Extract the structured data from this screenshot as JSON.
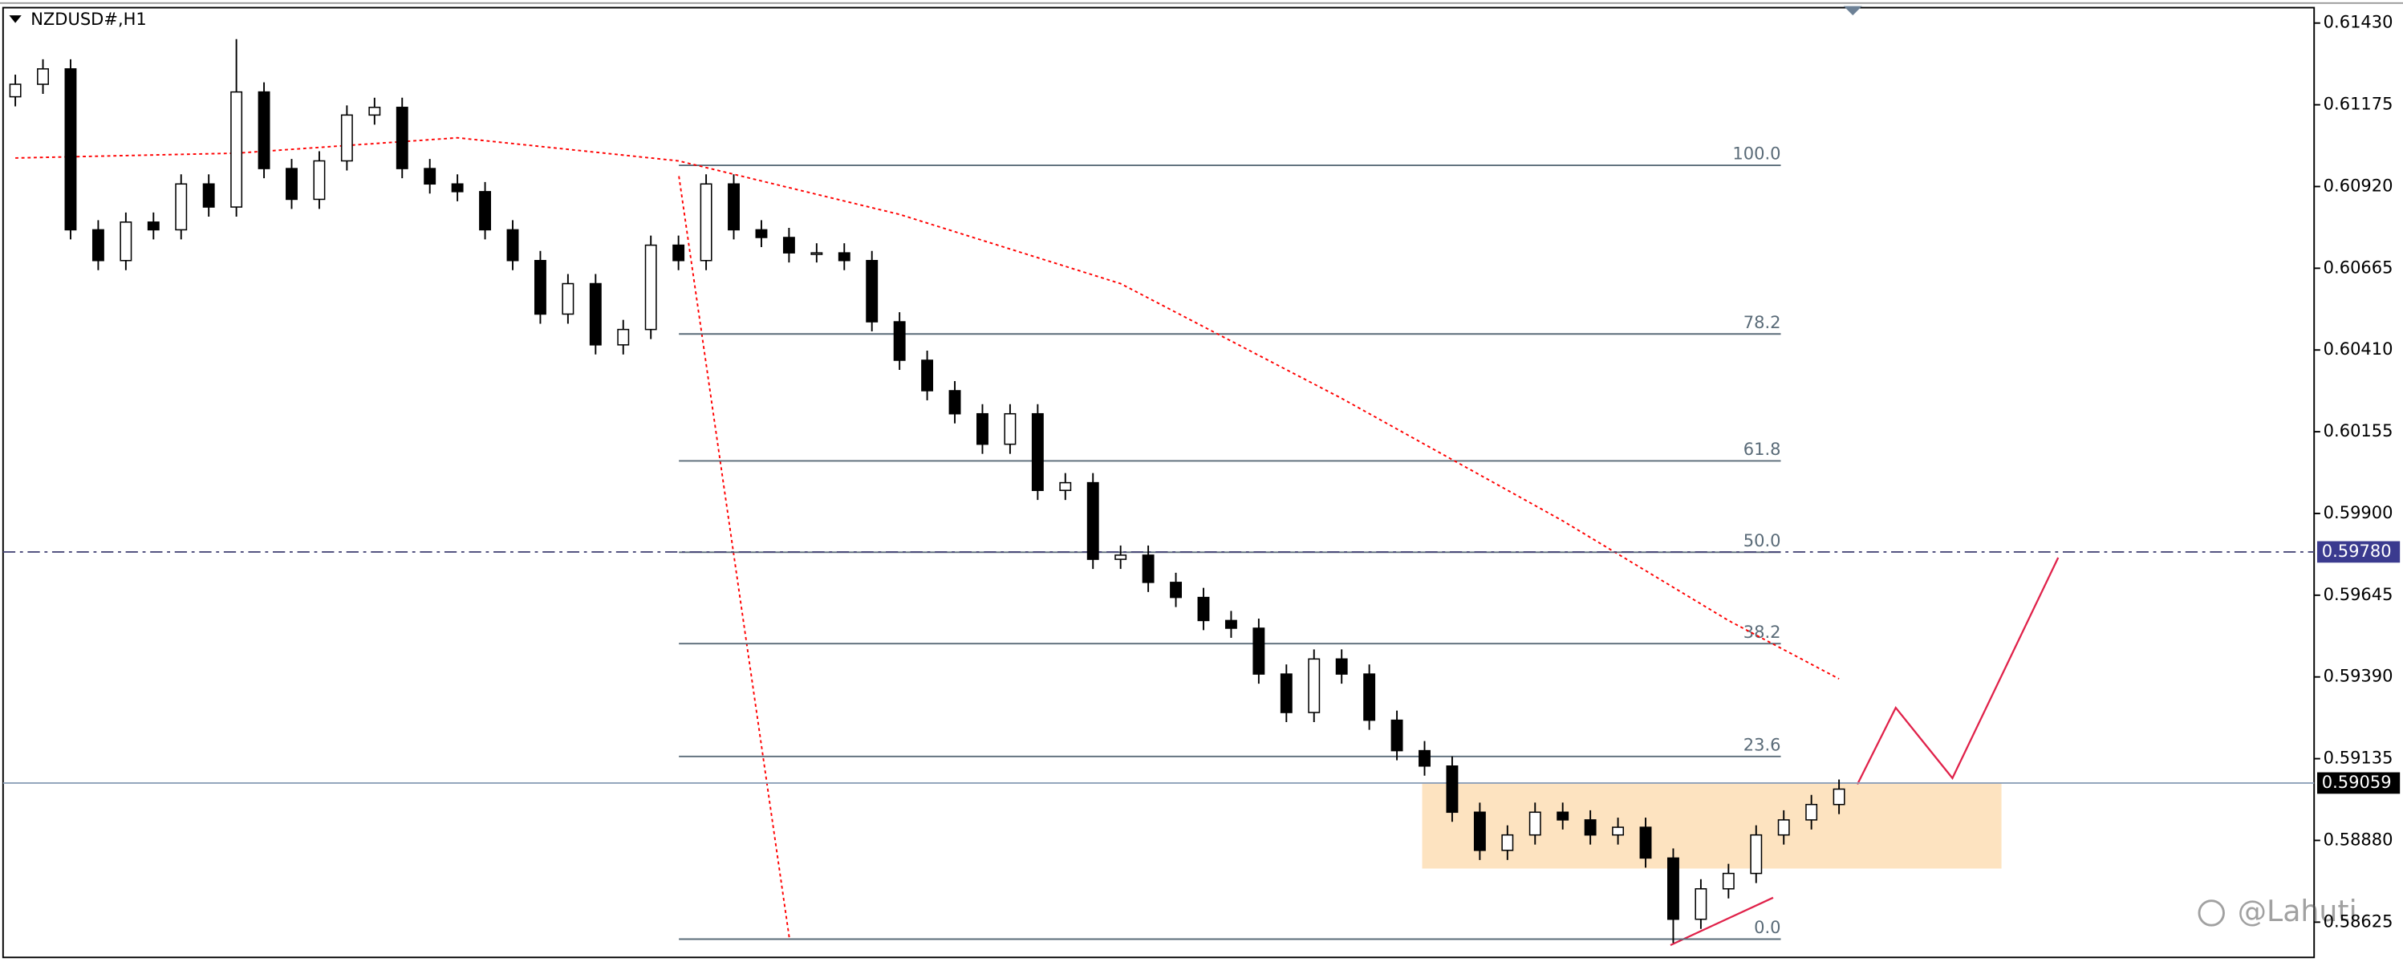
{
  "chart_data": {
    "type": "candlestick",
    "title": "NZDUSD#,H1",
    "watermark": "@Lahuti",
    "up_color": "#ffffff",
    "down_color": "#000000",
    "wick_color": "#000000",
    "open": [
      0.612,
      0.61239,
      0.61287,
      0.60785,
      0.60689,
      0.60809,
      0.60785,
      0.60928,
      0.60856,
      0.61215,
      0.60976,
      0.6088,
      0.61,
      0.61143,
      0.61167,
      0.60976,
      0.60928,
      0.60904,
      0.60785,
      0.60689,
      0.60522,
      0.60617,
      0.60426,
      0.60474,
      0.60737,
      0.60689,
      0.60928,
      0.60785,
      0.60761,
      0.60713,
      0.60713,
      0.60689,
      0.60498,
      0.60378,
      0.60283,
      0.60211,
      0.60116,
      0.60211,
      0.59972,
      0.59996,
      0.59757,
      0.5977,
      0.59685,
      0.59638,
      0.59566,
      0.59542,
      0.59399,
      0.59279,
      0.59446,
      0.59399,
      0.59255,
      0.5916,
      0.59112,
      0.58968,
      0.58849,
      0.58897,
      0.58968,
      0.58944,
      0.58897,
      0.58921,
      0.58825,
      0.58634,
      0.58729,
      0.58777,
      0.58897,
      0.58944,
      0.58992
    ],
    "high": [
      0.61269,
      0.61317,
      0.61317,
      0.60815,
      0.60839,
      0.60839,
      0.60958,
      0.60958,
      0.6138,
      0.61245,
      0.61006,
      0.6103,
      0.61173,
      0.61197,
      0.61197,
      0.61006,
      0.60958,
      0.60934,
      0.60815,
      0.60719,
      0.60647,
      0.60647,
      0.60504,
      0.60767,
      0.60767,
      0.60958,
      0.60958,
      0.60815,
      0.60791,
      0.60743,
      0.60743,
      0.60719,
      0.60528,
      0.60408,
      0.60313,
      0.60241,
      0.60241,
      0.60241,
      0.60026,
      0.60026,
      0.598,
      0.598,
      0.59715,
      0.59668,
      0.59596,
      0.59572,
      0.59429,
      0.59476,
      0.59476,
      0.59429,
      0.59285,
      0.5919,
      0.59142,
      0.58998,
      0.58927,
      0.58998,
      0.58998,
      0.58974,
      0.58951,
      0.58951,
      0.58855,
      0.58759,
      0.58807,
      0.58927,
      0.58974,
      0.59022,
      0.5907
    ],
    "low": [
      0.6117,
      0.61209,
      0.60755,
      0.60659,
      0.60659,
      0.60755,
      0.60755,
      0.60826,
      0.60826,
      0.60946,
      0.6085,
      0.6085,
      0.6097,
      0.61113,
      0.60946,
      0.60898,
      0.60874,
      0.60755,
      0.60659,
      0.60492,
      0.60492,
      0.60396,
      0.60396,
      0.60444,
      0.60659,
      0.60659,
      0.60755,
      0.60731,
      0.60683,
      0.60683,
      0.60659,
      0.60468,
      0.60348,
      0.60253,
      0.60181,
      0.60086,
      0.60086,
      0.59942,
      0.59942,
      0.59727,
      0.59727,
      0.59655,
      0.59608,
      0.59536,
      0.59512,
      0.59369,
      0.59249,
      0.59249,
      0.59369,
      0.59225,
      0.5913,
      0.59082,
      0.58938,
      0.58819,
      0.58819,
      0.58867,
      0.58914,
      0.58867,
      0.58867,
      0.58795,
      0.5856,
      0.58604,
      0.58699,
      0.58747,
      0.58867,
      0.58914,
      0.58962
    ],
    "close": [
      0.61239,
      0.61287,
      0.60785,
      0.60689,
      0.60809,
      0.60785,
      0.60928,
      0.60856,
      0.61215,
      0.60976,
      0.6088,
      0.61,
      0.61143,
      0.61167,
      0.60976,
      0.60928,
      0.60904,
      0.60785,
      0.60689,
      0.60522,
      0.60617,
      0.60426,
      0.60474,
      0.60737,
      0.60689,
      0.60928,
      0.60785,
      0.60761,
      0.60713,
      0.60713,
      0.60689,
      0.60498,
      0.60378,
      0.60283,
      0.60211,
      0.60116,
      0.60211,
      0.59972,
      0.59996,
      0.59757,
      0.5977,
      0.59685,
      0.59638,
      0.59566,
      0.59542,
      0.59399,
      0.59279,
      0.59446,
      0.59399,
      0.59255,
      0.5916,
      0.59112,
      0.58968,
      0.58849,
      0.58897,
      0.58968,
      0.58944,
      0.58897,
      0.58921,
      0.58825,
      0.58634,
      0.58729,
      0.58777,
      0.58897,
      0.58944,
      0.58992,
      0.5904
    ],
    "ylim": [
      0.58515,
      0.61478
    ],
    "yticks": [
      {
        "value": 0.6143,
        "label": "0.61430"
      },
      {
        "value": 0.61175,
        "label": "0.61175"
      },
      {
        "value": 0.6092,
        "label": "0.60920"
      },
      {
        "value": 0.60665,
        "label": "0.60665"
      },
      {
        "value": 0.6041,
        "label": "0.60410"
      },
      {
        "value": 0.60155,
        "label": "0.60155"
      },
      {
        "value": 0.599,
        "label": "0.59900"
      },
      {
        "value": 0.59645,
        "label": "0.59645"
      },
      {
        "value": 0.5939,
        "label": "0.59390"
      },
      {
        "value": 0.59135,
        "label": "0.59135"
      },
      {
        "value": 0.5888,
        "label": "0.58880"
      },
      {
        "value": 0.58625,
        "label": "0.58625"
      }
    ],
    "moving_average": {
      "color": "#ff0000",
      "index": [
        0,
        8,
        16,
        24,
        32,
        40,
        48,
        56,
        62,
        66
      ],
      "values": [
        0.61009,
        0.61024,
        0.61072,
        0.61,
        0.60833,
        0.60617,
        0.60259,
        0.59877,
        0.59566,
        0.59384
      ]
    },
    "fib_color": "#5a6b78",
    "fib_levels": [
      {
        "label": "100.0",
        "price": 0.60986
      },
      {
        "label": "78.2",
        "price": 0.6046
      },
      {
        "label": "61.8",
        "price": 0.60064
      },
      {
        "label": "50.0",
        "price": 0.59779
      },
      {
        "label": "38.2",
        "price": 0.59494
      },
      {
        "label": "23.6",
        "price": 0.59142
      },
      {
        "label": "0.0",
        "price": 0.58572
      }
    ],
    "price_lines": [
      {
        "value": 0.5978,
        "label": "0.59780",
        "color": "#3b3b8f",
        "style": "dashdot"
      },
      {
        "value": 0.59059,
        "label": "0.59059",
        "color": "#000000",
        "style": "solid"
      }
    ]
  }
}
